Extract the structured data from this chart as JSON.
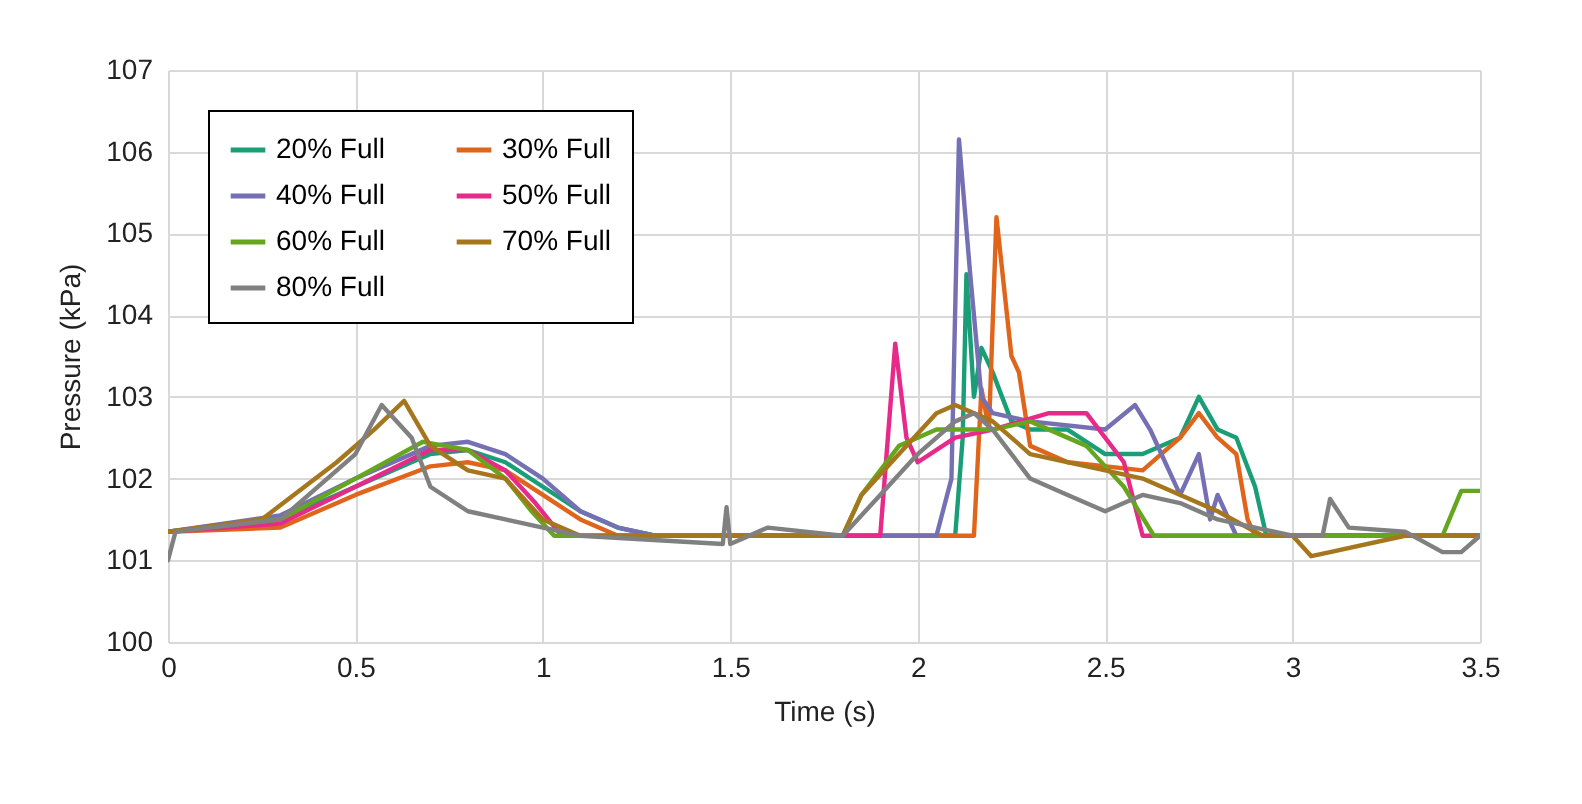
{
  "chart_data": {
    "type": "line",
    "xlabel": "Time (s)",
    "ylabel": "Pressure (kPa)",
    "xlim": [
      0,
      3.5
    ],
    "xticks": [
      0,
      0.5,
      1,
      1.5,
      2,
      2.5,
      3,
      3.5
    ],
    "ylim": [
      100,
      107
    ],
    "yticks": [
      100,
      101,
      102,
      103,
      104,
      105,
      106,
      107
    ],
    "grid": true,
    "legend": "top left",
    "line_style": "solid",
    "series": [
      {
        "name": "20% Full",
        "color": "#1a9e77",
        "x": [
          0,
          0.3,
          0.5,
          0.7,
          0.8,
          0.9,
          1.0,
          1.1,
          1.2,
          1.3,
          1.5,
          2.1,
          2.12,
          2.13,
          2.15,
          2.17,
          2.2,
          2.25,
          2.3,
          2.4,
          2.5,
          2.6,
          2.7,
          2.75,
          2.8,
          2.85,
          2.9,
          2.93,
          3.5
        ],
        "values": [
          101.35,
          101.5,
          101.9,
          102.3,
          102.35,
          102.2,
          101.9,
          101.6,
          101.4,
          101.3,
          101.3,
          101.3,
          102.5,
          104.5,
          103,
          103.6,
          103.3,
          102.7,
          102.6,
          102.6,
          102.3,
          102.3,
          102.5,
          103.0,
          102.6,
          102.5,
          101.9,
          101.3,
          101.3
        ]
      },
      {
        "name": "30% Full",
        "color": "#e0651b",
        "x": [
          0,
          0.3,
          0.5,
          0.7,
          0.8,
          0.9,
          1.0,
          1.1,
          1.2,
          2.15,
          2.17,
          2.19,
          2.21,
          2.25,
          2.27,
          2.3,
          2.4,
          2.6,
          2.7,
          2.75,
          2.8,
          2.85,
          2.88,
          2.9,
          3.5
        ],
        "values": [
          101.35,
          101.4,
          101.8,
          102.15,
          102.2,
          102.1,
          101.8,
          101.5,
          101.3,
          101.3,
          103.1,
          102.6,
          105.2,
          103.5,
          103.3,
          102.4,
          102.2,
          102.1,
          102.5,
          102.8,
          102.5,
          102.3,
          101.5,
          101.3,
          101.3
        ]
      },
      {
        "name": "40% Full",
        "color": "#7570b3",
        "x": [
          0,
          0.3,
          0.5,
          0.7,
          0.8,
          0.9,
          1.0,
          1.1,
          1.2,
          1.3,
          2.05,
          2.09,
          2.11,
          2.14,
          2.17,
          2.2,
          2.3,
          2.5,
          2.58,
          2.62,
          2.7,
          2.75,
          2.78,
          2.8,
          2.85,
          3.5
        ],
        "values": [
          101.35,
          101.55,
          102.0,
          102.4,
          102.45,
          102.3,
          102.0,
          101.6,
          101.4,
          101.3,
          101.3,
          102.0,
          106.15,
          104.5,
          103.0,
          102.8,
          102.7,
          102.6,
          102.9,
          102.6,
          101.8,
          102.3,
          101.5,
          101.8,
          101.3,
          101.3
        ]
      },
      {
        "name": "50% Full",
        "color": "#e7298a",
        "x": [
          0,
          0.3,
          0.5,
          0.7,
          0.8,
          0.9,
          0.98,
          1.05,
          1.9,
          1.94,
          1.97,
          2.0,
          2.1,
          2.2,
          2.35,
          2.45,
          2.55,
          2.6,
          3.5
        ],
        "values": [
          101.35,
          101.45,
          101.9,
          102.35,
          102.35,
          102.1,
          101.7,
          101.3,
          101.3,
          103.65,
          102.5,
          102.2,
          102.5,
          102.6,
          102.8,
          102.8,
          102.2,
          101.3,
          101.3
        ]
      },
      {
        "name": "60% Full",
        "color": "#66a61e",
        "x": [
          0,
          0.3,
          0.5,
          0.68,
          0.8,
          0.9,
          0.97,
          1.03,
          1.8,
          1.85,
          1.95,
          2.05,
          2.2,
          2.3,
          2.45,
          2.55,
          2.63,
          3.4,
          3.45,
          3.5
        ],
        "values": [
          101.35,
          101.5,
          102.0,
          102.45,
          102.35,
          102.0,
          101.6,
          101.3,
          101.3,
          101.8,
          102.4,
          102.6,
          102.6,
          102.7,
          102.4,
          101.9,
          101.3,
          101.3,
          101.85,
          101.85
        ]
      },
      {
        "name": "70% Full",
        "color": "#a6761d",
        "x": [
          0,
          0.25,
          0.45,
          0.55,
          0.63,
          0.7,
          0.8,
          0.9,
          1.0,
          1.1,
          1.8,
          1.85,
          1.95,
          2.05,
          2.1,
          2.2,
          2.3,
          2.5,
          2.6,
          2.8,
          2.92,
          3.0,
          3.05,
          3.1,
          3.3,
          3.5
        ],
        "values": [
          101.35,
          101.5,
          102.2,
          102.6,
          102.95,
          102.4,
          102.1,
          102.0,
          101.5,
          101.3,
          101.3,
          101.8,
          102.3,
          102.8,
          102.9,
          102.7,
          102.3,
          102.1,
          102.0,
          101.6,
          101.3,
          101.3,
          101.05,
          101.1,
          101.3,
          101.3
        ]
      },
      {
        "name": "80% Full",
        "color": "#808080",
        "x": [
          0,
          0.02,
          0.3,
          0.5,
          0.57,
          0.65,
          0.7,
          0.8,
          0.9,
          1.0,
          1.1,
          1.48,
          1.49,
          1.5,
          1.6,
          1.8,
          1.9,
          2.0,
          2.1,
          2.15,
          2.2,
          2.3,
          2.4,
          2.5,
          2.55,
          2.6,
          2.7,
          2.8,
          2.9,
          3.0,
          3.08,
          3.1,
          3.15,
          3.3,
          3.4,
          3.45,
          3.5
        ],
        "values": [
          101.0,
          101.35,
          101.5,
          102.3,
          102.9,
          102.5,
          101.9,
          101.6,
          101.5,
          101.4,
          101.3,
          101.2,
          101.65,
          101.2,
          101.4,
          101.3,
          101.8,
          102.3,
          102.7,
          102.8,
          102.6,
          102.0,
          101.8,
          101.6,
          101.7,
          101.8,
          101.7,
          101.5,
          101.4,
          101.3,
          101.3,
          101.75,
          101.4,
          101.35,
          101.1,
          101.1,
          101.3
        ]
      }
    ]
  }
}
